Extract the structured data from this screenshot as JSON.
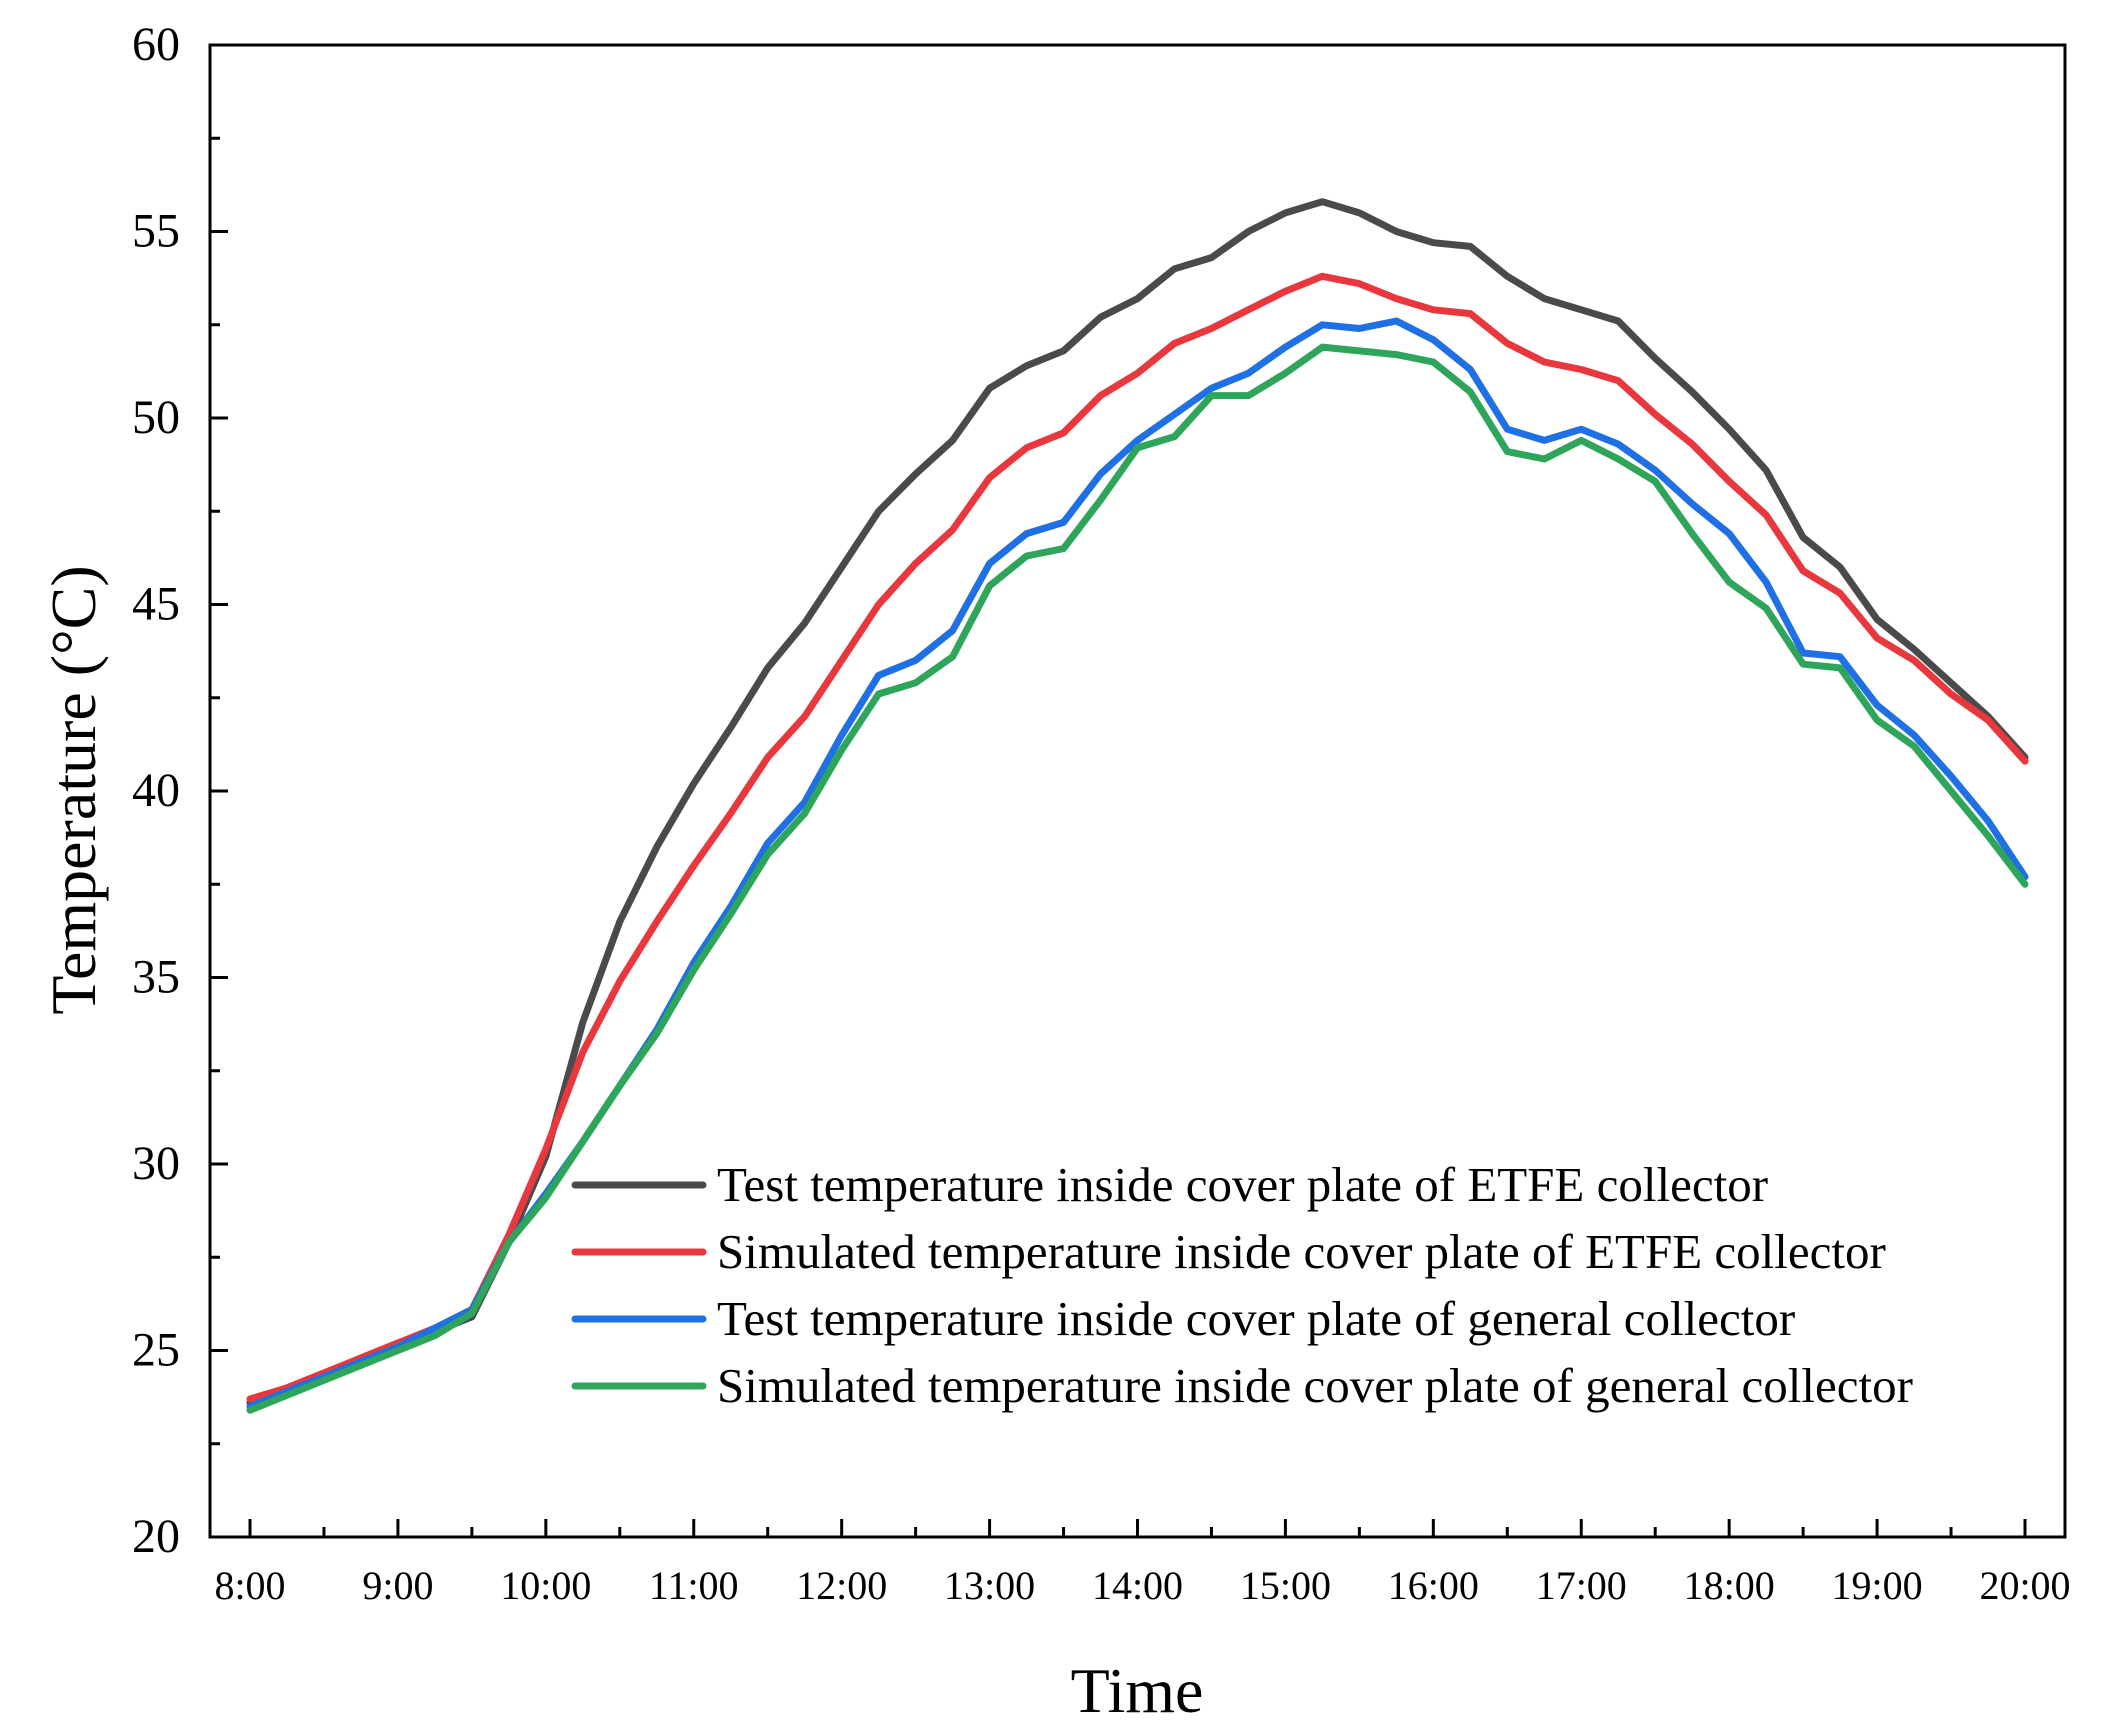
{
  "chart_data": {
    "type": "line",
    "title": "",
    "xlabel": "Time",
    "ylabel": "Temperature (°C)",
    "xlim": [
      8,
      20
    ],
    "ylim": [
      20,
      60
    ],
    "xticks": [
      8,
      9,
      10,
      11,
      12,
      13,
      14,
      15,
      16,
      17,
      18,
      19,
      20
    ],
    "xtick_labels": [
      "8:00",
      "9:00",
      "10:00",
      "11:00",
      "12:00",
      "13:00",
      "14:00",
      "15:00",
      "16:00",
      "17:00",
      "18:00",
      "19:00",
      "20:00"
    ],
    "yticks": [
      20,
      25,
      30,
      35,
      40,
      45,
      50,
      55,
      60
    ],
    "ytick_labels": [
      "20",
      "25",
      "30",
      "35",
      "40",
      "45",
      "50",
      "55",
      "60"
    ],
    "legend_position": "lower-right",
    "x": [
      8.0,
      8.25,
      8.5,
      8.75,
      9.0,
      9.25,
      9.5,
      9.75,
      10.0,
      10.25,
      10.5,
      10.75,
      11.0,
      11.25,
      11.5,
      11.75,
      12.0,
      12.25,
      12.5,
      12.75,
      13.0,
      13.25,
      13.5,
      13.75,
      14.0,
      14.25,
      14.5,
      14.75,
      15.0,
      15.25,
      15.5,
      15.75,
      16.0,
      16.25,
      16.5,
      16.75,
      17.0,
      17.25,
      17.5,
      17.75,
      18.0,
      18.25,
      18.5,
      18.75,
      19.0,
      19.25,
      19.5,
      19.75,
      20.0
    ],
    "series": [
      {
        "name": "Test temperature inside cover plate of ETFE collector",
        "color": "#4a4a4a",
        "values": [
          23.6,
          23.9,
          24.3,
          24.8,
          25.2,
          25.5,
          25.9,
          27.9,
          30.2,
          33.8,
          36.5,
          38.5,
          40.2,
          41.7,
          43.3,
          44.5,
          46.0,
          47.5,
          48.5,
          49.4,
          50.8,
          51.4,
          51.8,
          52.7,
          53.2,
          54.0,
          54.3,
          55.0,
          55.5,
          55.8,
          55.5,
          55.0,
          54.7,
          54.6,
          53.8,
          53.2,
          52.9,
          52.6,
          51.6,
          50.7,
          49.7,
          48.6,
          46.8,
          46.0,
          44.6,
          43.8,
          42.9,
          42.0,
          40.9
        ]
      },
      {
        "name": "Simulated temperature inside cover plate of ETFE collector",
        "color": "#e8383d",
        "values": [
          23.7,
          24.0,
          24.4,
          24.8,
          25.2,
          25.6,
          26.1,
          28.1,
          30.4,
          33.0,
          34.9,
          36.5,
          38.0,
          39.4,
          40.9,
          42.0,
          43.5,
          45.0,
          46.1,
          47.0,
          48.4,
          49.2,
          49.6,
          50.6,
          51.2,
          52.0,
          52.4,
          52.9,
          53.4,
          53.8,
          53.6,
          53.2,
          52.9,
          52.8,
          52.0,
          51.5,
          51.3,
          51.0,
          50.1,
          49.3,
          48.3,
          47.4,
          45.9,
          45.3,
          44.1,
          43.5,
          42.6,
          41.9,
          40.8
        ]
      },
      {
        "name": "Test temperature inside cover plate of general collector",
        "color": "#1f6fe5",
        "values": [
          23.5,
          23.9,
          24.3,
          24.7,
          25.1,
          25.6,
          26.1,
          27.9,
          29.2,
          30.6,
          32.1,
          33.6,
          35.4,
          36.9,
          38.6,
          39.7,
          41.5,
          43.1,
          43.5,
          44.3,
          46.1,
          46.9,
          47.2,
          48.5,
          49.4,
          50.1,
          50.8,
          51.2,
          51.9,
          52.5,
          52.4,
          52.6,
          52.1,
          51.3,
          49.7,
          49.4,
          49.7,
          49.3,
          48.6,
          47.7,
          46.9,
          45.6,
          43.7,
          43.6,
          42.3,
          41.5,
          40.4,
          39.2,
          37.7
        ]
      },
      {
        "name": "Simulated temperature inside cover plate of general collector",
        "color": "#2ea55a",
        "values": [
          23.4,
          23.8,
          24.2,
          24.6,
          25.0,
          25.4,
          26.0,
          27.9,
          29.1,
          30.6,
          32.1,
          33.5,
          35.2,
          36.7,
          38.3,
          39.4,
          41.1,
          42.6,
          42.9,
          43.6,
          45.5,
          46.3,
          46.5,
          47.8,
          49.2,
          49.5,
          50.6,
          50.6,
          51.2,
          51.9,
          51.8,
          51.7,
          51.5,
          50.7,
          49.1,
          48.9,
          49.4,
          48.9,
          48.3,
          46.9,
          45.6,
          44.9,
          43.4,
          43.3,
          41.9,
          41.2,
          40.0,
          38.8,
          37.5
        ]
      }
    ]
  }
}
